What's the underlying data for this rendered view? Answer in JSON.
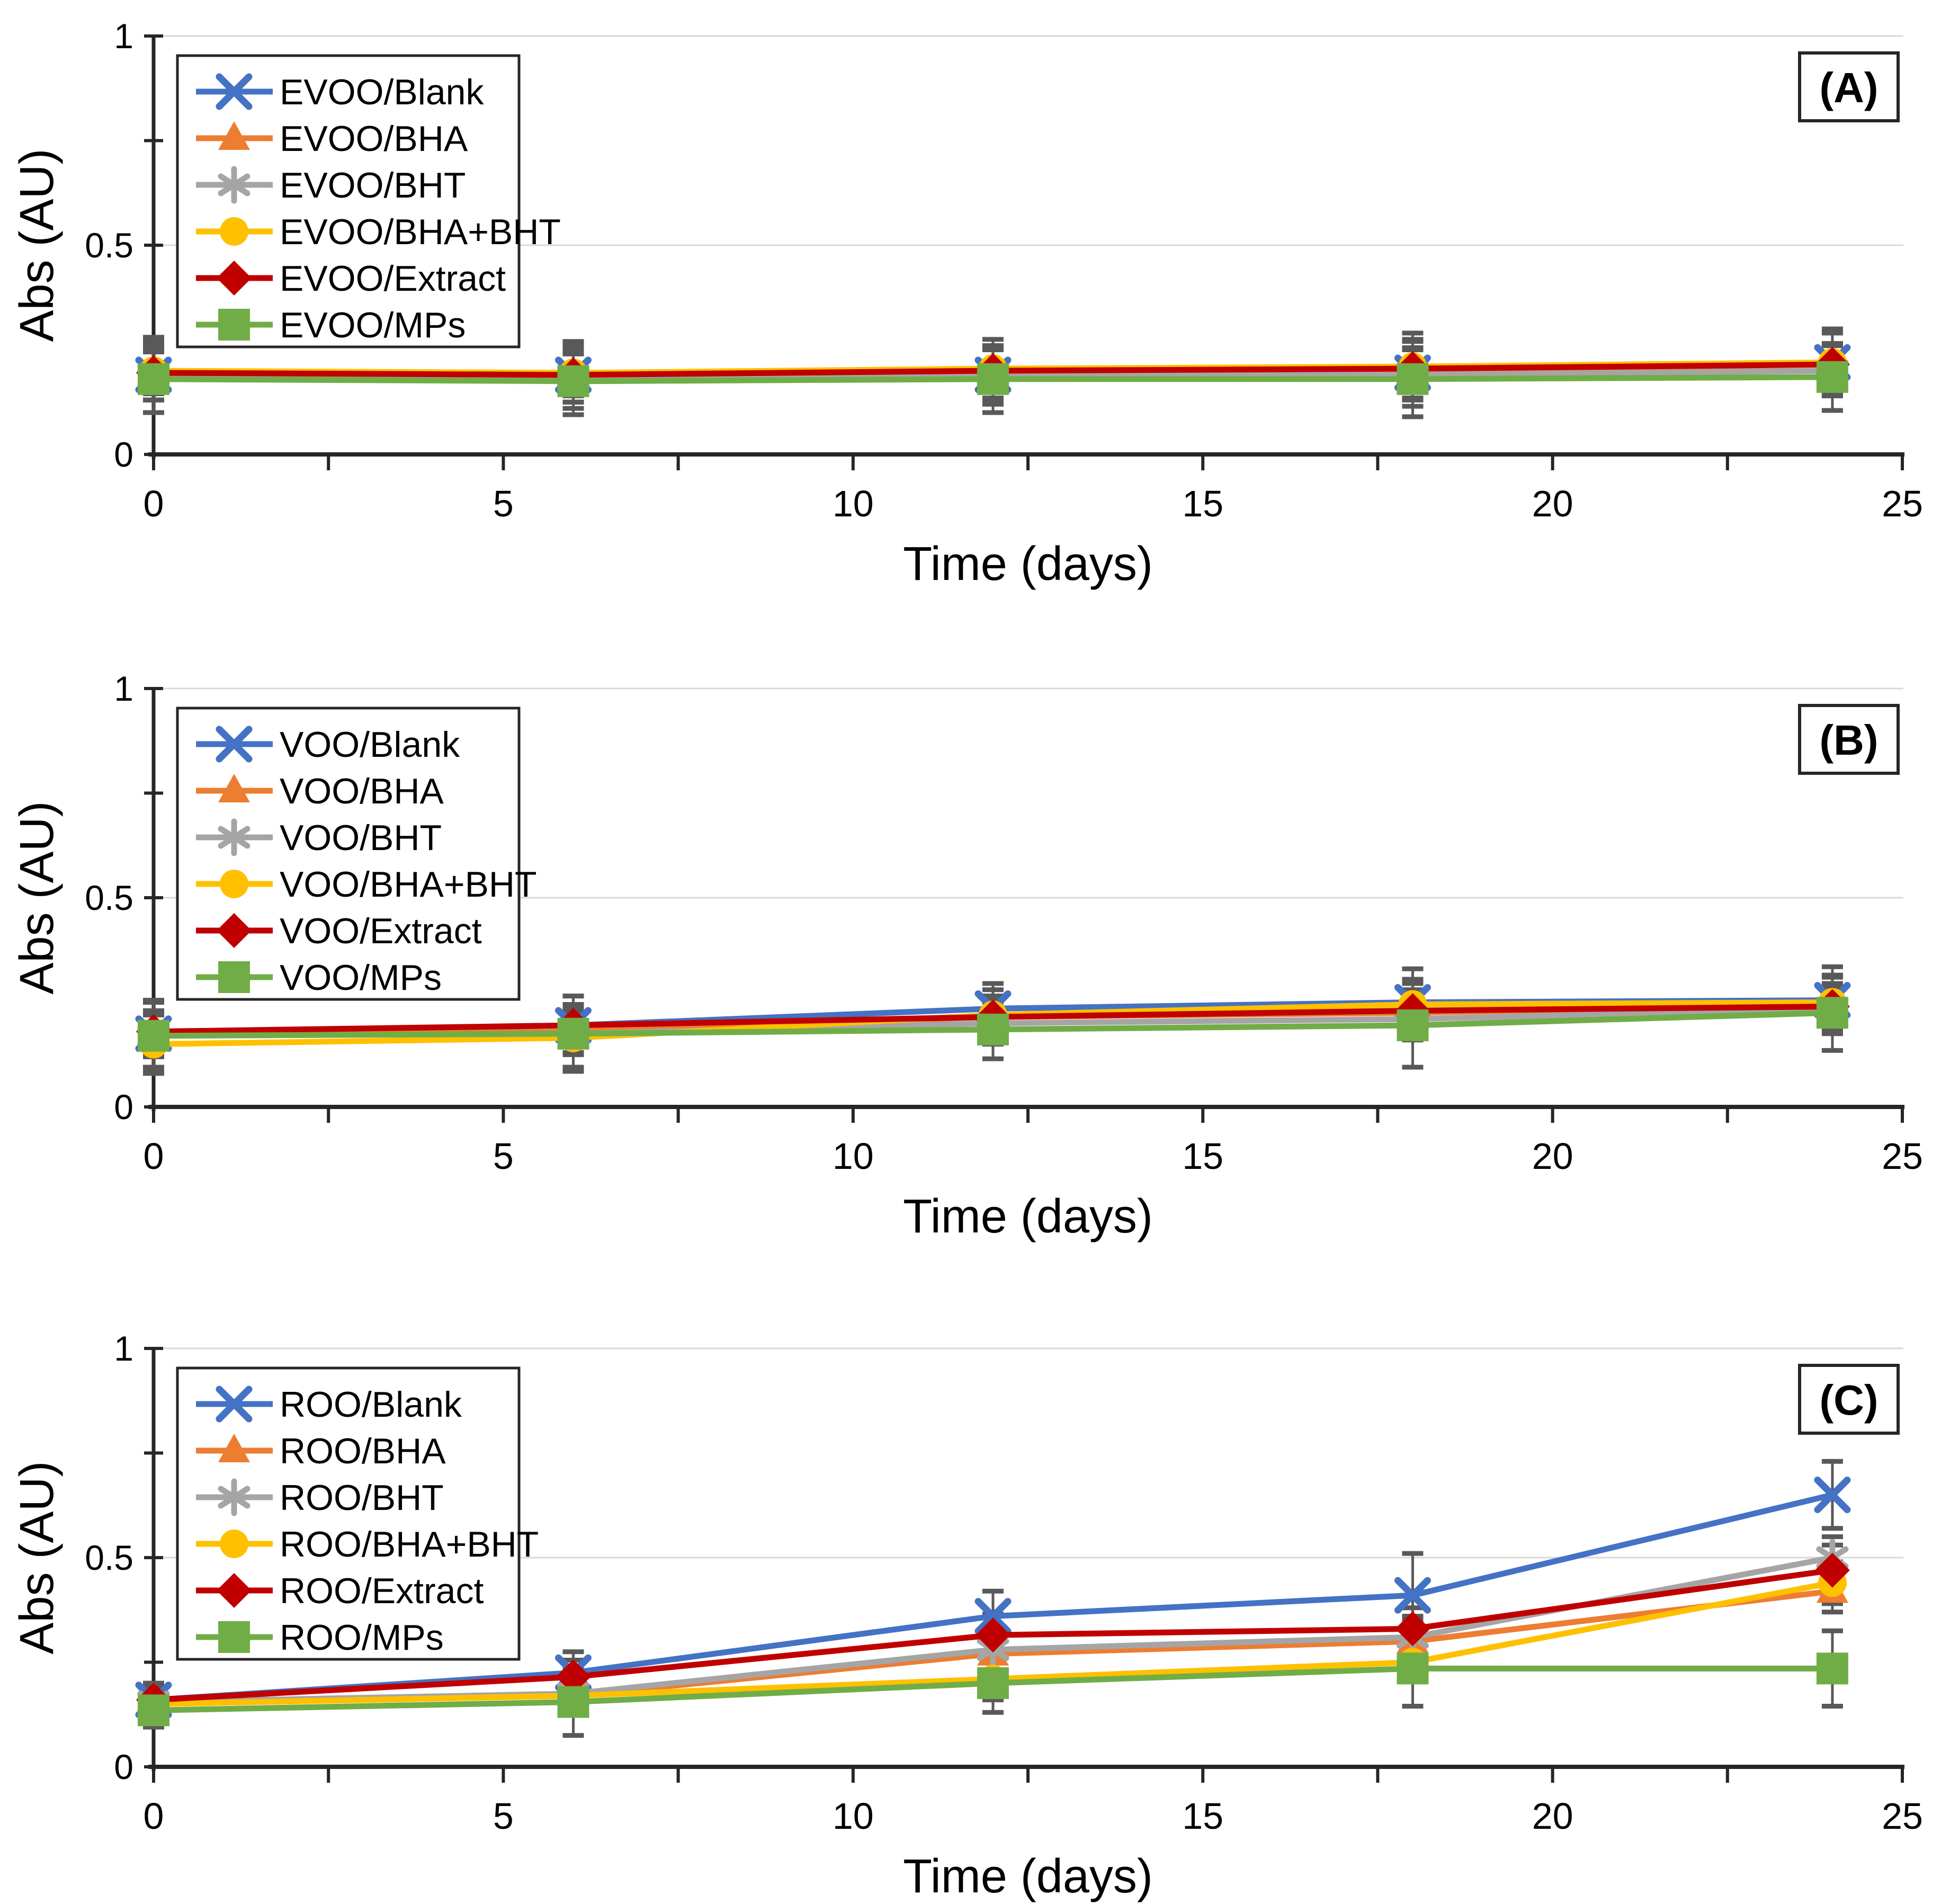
{
  "figure": {
    "background": "#FFFFFF",
    "axis_color": "#262626",
    "grid_color": "#D9D9D9",
    "error_bar_color": "#595959",
    "text_color": "#000000"
  },
  "chart_data": [
    {
      "type": "line",
      "panel_label": "(A)",
      "title": "",
      "xlabel": "Time (days)",
      "ylabel": "Abs (AU)",
      "xlim": [
        0,
        25
      ],
      "ylim": [
        0,
        1
      ],
      "xticks_labeled": [
        0,
        5,
        10,
        15,
        20,
        25
      ],
      "xtick_minor_step": 2.5,
      "yticks_labeled": [
        "0",
        "0.5",
        "1"
      ],
      "ytick_values": [
        0,
        0.5,
        1
      ],
      "ytick_minor_step": 0.25,
      "gridlines_y": [
        0.5,
        1
      ],
      "legend_position": "top-left",
      "x": [
        0,
        6,
        12,
        18,
        24
      ],
      "series": [
        {
          "name": "EVOO/Blank",
          "color": "#4472C4",
          "marker": "x",
          "values": [
            0.19,
            0.19,
            0.19,
            0.195,
            0.22
          ],
          "err": [
            0.09,
            0.08,
            0.07,
            0.08,
            0.08
          ]
        },
        {
          "name": "EVOO/BHA",
          "color": "#ED7D31",
          "marker": "triangle",
          "values": [
            0.19,
            0.185,
            0.19,
            0.195,
            0.2
          ],
          "err": [
            0.06,
            0.06,
            0.06,
            0.06,
            0.06
          ]
        },
        {
          "name": "EVOO/BHT",
          "color": "#A5A5A5",
          "marker": "asterisk",
          "values": [
            0.19,
            0.185,
            0.19,
            0.19,
            0.2
          ],
          "err": [
            0.06,
            0.06,
            0.06,
            0.06,
            0.06
          ]
        },
        {
          "name": "EVOO/BHA+BHT",
          "color": "#FFC000",
          "marker": "circle",
          "values": [
            0.2,
            0.195,
            0.205,
            0.21,
            0.22
          ],
          "err": [
            0.07,
            0.07,
            0.07,
            0.08,
            0.07
          ]
        },
        {
          "name": "EVOO/Extract",
          "color": "#C00000",
          "marker": "diamond",
          "values": [
            0.195,
            0.19,
            0.2,
            0.205,
            0.215
          ],
          "err": [
            0.05,
            0.05,
            0.05,
            0.05,
            0.05
          ]
        },
        {
          "name": "EVOO/MPs",
          "color": "#70AD47",
          "marker": "square",
          "values": [
            0.18,
            0.175,
            0.18,
            0.18,
            0.185
          ],
          "err": [
            0.08,
            0.08,
            0.08,
            0.09,
            0.08
          ]
        }
      ]
    },
    {
      "type": "line",
      "panel_label": "(B)",
      "title": "",
      "xlabel": "Time (days)",
      "ylabel": "Abs (AU)",
      "xlim": [
        0,
        25
      ],
      "ylim": [
        0,
        1
      ],
      "xticks_labeled": [
        0,
        5,
        10,
        15,
        20,
        25
      ],
      "xtick_minor_step": 2.5,
      "yticks_labeled": [
        "0",
        "0.5",
        "1"
      ],
      "ytick_values": [
        0,
        0.5,
        1
      ],
      "ytick_minor_step": 0.25,
      "gridlines_y": [
        0.5,
        1
      ],
      "legend_position": "top-left",
      "x": [
        0,
        6,
        12,
        18,
        24
      ],
      "series": [
        {
          "name": "VOO/Blank",
          "color": "#4472C4",
          "marker": "x",
          "values": [
            0.175,
            0.195,
            0.235,
            0.25,
            0.255
          ],
          "err": [
            0.08,
            0.07,
            0.06,
            0.08,
            0.08
          ]
        },
        {
          "name": "VOO/BHA",
          "color": "#ED7D31",
          "marker": "triangle",
          "values": [
            0.17,
            0.18,
            0.215,
            0.225,
            0.245
          ],
          "err": [
            0.05,
            0.05,
            0.05,
            0.05,
            0.05
          ]
        },
        {
          "name": "VOO/BHT",
          "color": "#A5A5A5",
          "marker": "asterisk",
          "values": [
            0.17,
            0.175,
            0.2,
            0.21,
            0.235
          ],
          "err": [
            0.05,
            0.05,
            0.05,
            0.05,
            0.05
          ]
        },
        {
          "name": "VOO/BHA+BHT",
          "color": "#FFC000",
          "marker": "circle",
          "values": [
            0.15,
            0.165,
            0.22,
            0.245,
            0.25
          ],
          "err": [
            0.07,
            0.07,
            0.06,
            0.06,
            0.06
          ]
        },
        {
          "name": "VOO/Extract",
          "color": "#C00000",
          "marker": "diamond",
          "values": [
            0.18,
            0.195,
            0.215,
            0.23,
            0.24
          ],
          "err": [
            0.05,
            0.05,
            0.05,
            0.05,
            0.05
          ]
        },
        {
          "name": "VOO/MPs",
          "color": "#70AD47",
          "marker": "square",
          "values": [
            0.17,
            0.175,
            0.185,
            0.195,
            0.225
          ],
          "err": [
            0.08,
            0.09,
            0.07,
            0.1,
            0.09
          ]
        }
      ]
    },
    {
      "type": "line",
      "panel_label": "(C)",
      "title": "",
      "xlabel": "Time (days)",
      "ylabel": "Abs (AU)",
      "xlim": [
        0,
        25
      ],
      "ylim": [
        0,
        1
      ],
      "xticks_labeled": [
        0,
        5,
        10,
        15,
        20,
        25
      ],
      "xtick_minor_step": 2.5,
      "yticks_labeled": [
        "0",
        "0.5",
        "1"
      ],
      "ytick_values": [
        0,
        0.5,
        1
      ],
      "ytick_minor_step": 0.25,
      "gridlines_y": [
        0.5,
        1
      ],
      "legend_position": "top-left",
      "x": [
        0,
        6,
        12,
        18,
        24
      ],
      "series": [
        {
          "name": "ROO/Blank",
          "color": "#4472C4",
          "marker": "x",
          "values": [
            0.16,
            0.225,
            0.36,
            0.41,
            0.65
          ],
          "err": [
            0.04,
            0.05,
            0.06,
            0.1,
            0.08
          ]
        },
        {
          "name": "ROO/BHA",
          "color": "#ED7D31",
          "marker": "triangle",
          "values": [
            0.15,
            0.17,
            0.27,
            0.3,
            0.42
          ],
          "err": [
            0.03,
            0.04,
            0.05,
            0.05,
            0.05
          ]
        },
        {
          "name": "ROO/BHT",
          "color": "#A5A5A5",
          "marker": "asterisk",
          "values": [
            0.155,
            0.175,
            0.28,
            0.31,
            0.5
          ],
          "err": [
            0.03,
            0.04,
            0.05,
            0.05,
            0.05
          ]
        },
        {
          "name": "ROO/BHA+BHT",
          "color": "#FFC000",
          "marker": "circle",
          "values": [
            0.15,
            0.17,
            0.21,
            0.25,
            0.44
          ],
          "err": [
            0.03,
            0.04,
            0.05,
            0.04,
            0.05
          ]
        },
        {
          "name": "ROO/Extract",
          "color": "#C00000",
          "marker": "diamond",
          "values": [
            0.16,
            0.215,
            0.315,
            0.33,
            0.47
          ],
          "err": [
            0.03,
            0.04,
            0.05,
            0.05,
            0.06
          ]
        },
        {
          "name": "ROO/MPs",
          "color": "#70AD47",
          "marker": "square",
          "values": [
            0.135,
            0.155,
            0.2,
            0.235,
            0.235
          ],
          "err": [
            0.04,
            0.08,
            0.07,
            0.09,
            0.09
          ]
        }
      ]
    }
  ]
}
